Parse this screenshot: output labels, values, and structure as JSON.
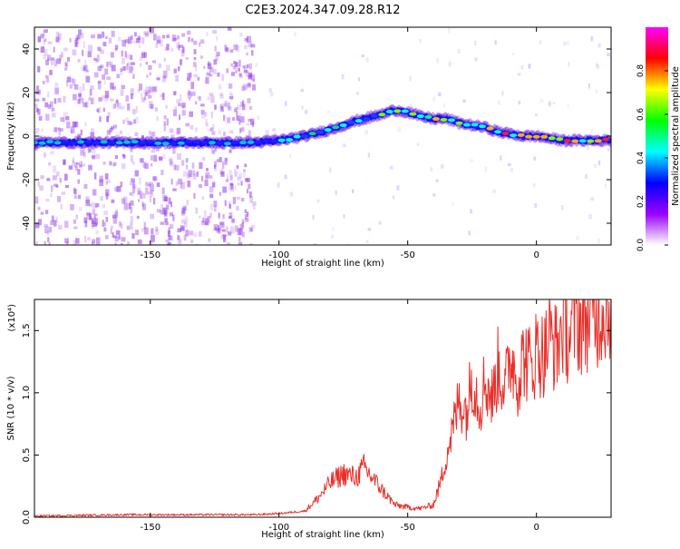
{
  "title": "C2E3.2024.347.09.28.R12",
  "chart_data": [
    {
      "type": "heatmap",
      "title": "",
      "xlabel": "Height of straight line (km)",
      "ylabel": "Frequency (Hz)",
      "xlim": [
        -195,
        29
      ],
      "ylim": [
        -50,
        50
      ],
      "x_ticks": [
        -150,
        -100,
        -50,
        0
      ],
      "y_ticks": [
        -40,
        -20,
        0,
        20,
        40
      ],
      "colorbar": {
        "label": "Normalized spectral amplitude",
        "range": [
          0,
          1
        ],
        "ticks": [
          "0.0",
          "0.2",
          "0.4",
          "0.6",
          "0.8"
        ],
        "colors": [
          "#ffffff",
          "#9a00ff",
          "#0000ff",
          "#00ffff",
          "#00ff00",
          "#ffff00",
          "#ff0000",
          "#ff00ff"
        ]
      },
      "ridge": {
        "x": [
          -195,
          -170,
          -150,
          -130,
          -110,
          -100,
          -90,
          -80,
          -70,
          -60,
          -55,
          -50,
          -45,
          -40,
          -35,
          -30,
          -25,
          -20,
          -15,
          -10,
          -5,
          0,
          5,
          10,
          15,
          20,
          29
        ],
        "y": [
          -3,
          -3,
          -3,
          -3,
          -3,
          -2,
          0,
          3,
          7,
          10,
          12,
          11,
          9,
          8,
          8,
          6,
          5,
          4,
          2,
          1,
          0,
          0,
          -1,
          -2,
          -2,
          -2,
          -2
        ]
      }
    },
    {
      "type": "line",
      "title": "",
      "xlabel": "Height of straight line (km)",
      "ylabel": "SNR (10 * v/v)",
      "y_multiplier": "(x10⁴)",
      "xlim": [
        -195,
        29
      ],
      "ylim": [
        0,
        1.75
      ],
      "x_ticks": [
        -150,
        -100,
        -50,
        0
      ],
      "y_ticks": [
        "0.0",
        "0.5",
        "1.0",
        "1.5"
      ],
      "color": "#e8302a",
      "series": [
        {
          "x": [
            -195,
            -160,
            -130,
            -110,
            -100,
            -90,
            -85,
            -80,
            -75,
            -70,
            -67,
            -65,
            -60,
            -55,
            -50,
            -45,
            -40,
            -37,
            -35,
            -32,
            -30,
            -27,
            -25,
            -22,
            -20,
            -17,
            -15,
            -12,
            -10,
            -7,
            -5,
            -2,
            0,
            3,
            5,
            8,
            10,
            13,
            15,
            18,
            20,
            23,
            25,
            29
          ],
          "y": [
            0.01,
            0.02,
            0.02,
            0.02,
            0.03,
            0.05,
            0.15,
            0.28,
            0.35,
            0.32,
            0.4,
            0.35,
            0.22,
            0.1,
            0.08,
            0.07,
            0.1,
            0.3,
            0.5,
            0.75,
            0.95,
            0.85,
            1.15,
            0.9,
            1.1,
            0.95,
            1.2,
            1.05,
            1.3,
            1.1,
            1.3,
            1.2,
            1.35,
            1.3,
            1.45,
            1.35,
            1.55,
            1.45,
            1.6,
            1.55,
            1.62,
            1.6,
            1.68,
            1.72
          ]
        }
      ]
    }
  ]
}
